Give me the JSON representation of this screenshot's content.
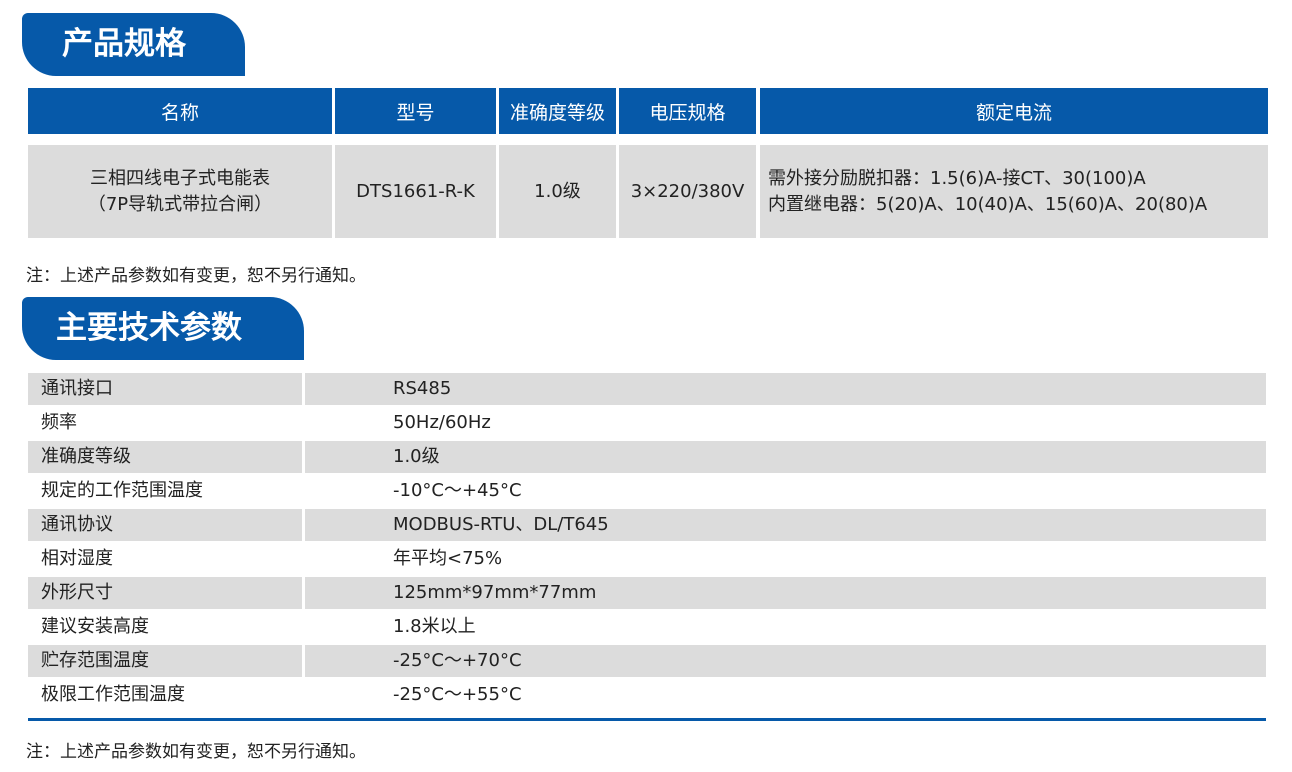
{
  "section1": {
    "title": "产品规格",
    "headers": [
      "名称",
      "型号",
      "准确度等级",
      "电压规格",
      "额定电流"
    ],
    "row": {
      "name_line1": "三相四线电子式电能表",
      "name_line2": "（7P导轨式带拉合闸）",
      "model": "DTS1661-R-K",
      "accuracy": "1.0级",
      "voltage": "3×220/380V",
      "current_line1": "需外接分励脱扣器：1.5(6)A-接CT、30(100)A",
      "current_line2": "内置继电器：5(20)A、10(40)A、15(60)A、20(80)A"
    },
    "note": "注：上述产品参数如有变更，恕不另行通知。"
  },
  "section2": {
    "title": "主要技术参数",
    "rows": [
      {
        "label": "通讯接口",
        "value": "RS485"
      },
      {
        "label": "频率",
        "value": "50Hz/60Hz"
      },
      {
        "label": "准确度等级",
        "value": "1.0级"
      },
      {
        "label": "规定的工作范围温度",
        "value": "-10°C～+45°C"
      },
      {
        "label": "通讯协议",
        "value": "MODBUS-RTU、DL/T645"
      },
      {
        "label": "相对湿度",
        "value": "年平均<75%"
      },
      {
        "label": "外形尺寸",
        "value": "125mm*97mm*77mm"
      },
      {
        "label": "建议安装高度",
        "value": "1.8米以上"
      },
      {
        "label": "贮存范围温度",
        "value": "-25°C～+70°C"
      },
      {
        "label": "极限工作范围温度",
        "value": "-25°C～+55°C"
      }
    ],
    "note": "注：上述产品参数如有变更，恕不另行通知。"
  },
  "colors": {
    "accent": "#0659a9",
    "row_gray": "#dcdcdc"
  }
}
